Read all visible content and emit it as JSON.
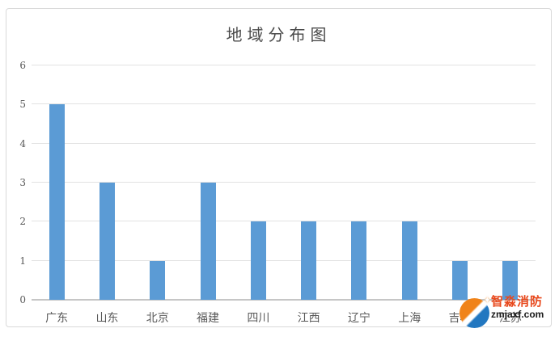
{
  "chart_data": {
    "type": "bar",
    "title": "地域分布图",
    "categories": [
      "广东",
      "山东",
      "北京",
      "福建",
      "四川",
      "江西",
      "辽宁",
      "上海",
      "吉林",
      "江苏"
    ],
    "values": [
      5,
      3,
      1,
      3,
      2,
      2,
      2,
      2,
      1,
      1
    ],
    "xlabel": "",
    "ylabel": "",
    "ylim": [
      0,
      6
    ],
    "yticks": [
      0,
      1,
      2,
      3,
      4,
      5,
      6
    ],
    "grid": true,
    "legend": "none",
    "bar_color": "#5b9bd5",
    "gridline_color": "#e2e2e2",
    "axis_line_color": "#c6c6c6",
    "tick_label_color": "#595959",
    "title_color": "#4a4a4a"
  },
  "watermark": {
    "brand_name": "智淼消防",
    "brand_url": "zmjaxf.com",
    "brand_color": "#e8491d",
    "url_color": "#1a1a1a",
    "logo_orange": "#f08319",
    "logo_blue": "#2277c0",
    "star_icon": "✦"
  }
}
